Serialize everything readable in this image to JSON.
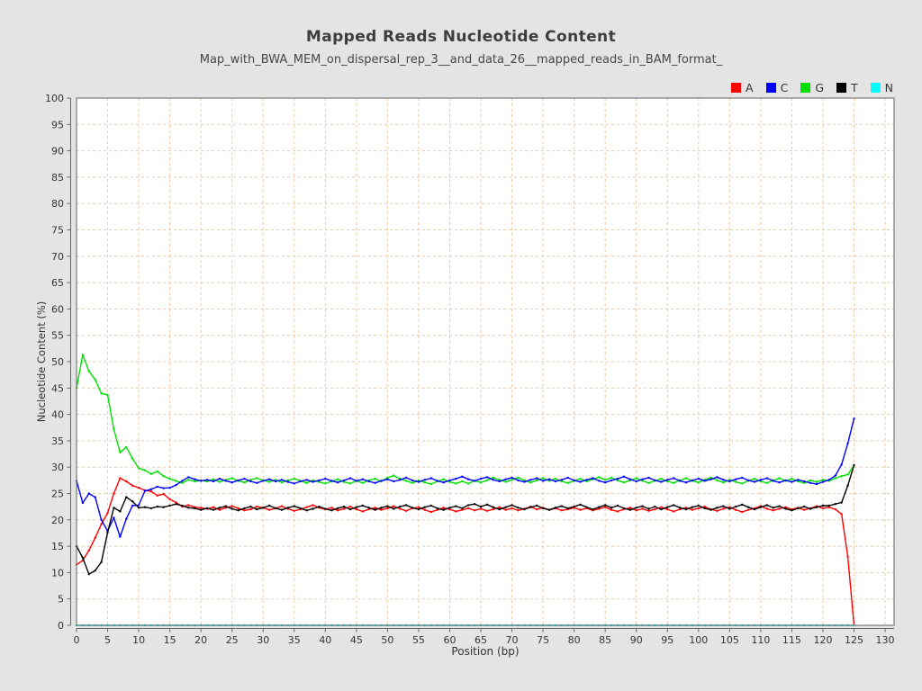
{
  "page": {
    "background": "#e4e4e4"
  },
  "header": {
    "title": "Mapped Reads Nucleotide Content",
    "subtitle": "Map_with_BWA_MEM_on_dispersal_rep_3__and_data_26__mapped_reads_in_BAM_format_"
  },
  "chart_data": {
    "type": "line",
    "title": "Mapped Reads Nucleotide Content",
    "subtitle": "Map_with_BWA_MEM_on_dispersal_rep_3__and_data_26__mapped_reads_in_BAM_format_",
    "xlabel": "Position (bp)",
    "ylabel": "Nucleotide Content (%)",
    "xlim": [
      0,
      130
    ],
    "ylim": [
      0,
      100
    ],
    "xticks": [
      0,
      5,
      10,
      15,
      20,
      25,
      30,
      35,
      40,
      45,
      50,
      55,
      60,
      65,
      70,
      75,
      80,
      85,
      90,
      95,
      100,
      105,
      110,
      115,
      120,
      125,
      130
    ],
    "yticks": [
      0,
      5,
      10,
      15,
      20,
      25,
      30,
      35,
      40,
      45,
      50,
      55,
      60,
      65,
      70,
      75,
      80,
      85,
      90,
      95,
      100
    ],
    "grid": "dashed",
    "grid_color": "#f0c8a0",
    "plot_background": "#ffffff",
    "border_color": "#7a7a7a",
    "axis_color": "#666666",
    "legend_position": "top-right",
    "x_start": 0,
    "x_step": 1,
    "series": [
      {
        "name": "A",
        "color": "#ff0000",
        "values": [
          11.5,
          12.3,
          14.2,
          16.6,
          19.2,
          21.3,
          25.0,
          27.9,
          27.3,
          26.5,
          26.1,
          25.6,
          25.4,
          24.6,
          24.9,
          23.9,
          23.3,
          22.5,
          22.8,
          22.4,
          22.3,
          22.1,
          22.4,
          21.9,
          22.3,
          22.6,
          22.2,
          21.8,
          22.0,
          22.5,
          22.3,
          21.9,
          22.2,
          22.6,
          22.1,
          21.7,
          22.0,
          22.4,
          22.8,
          22.3,
          22.0,
          22.3,
          21.8,
          22.1,
          22.5,
          22.0,
          21.6,
          22.0,
          22.3,
          21.9,
          22.2,
          22.6,
          22.1,
          21.7,
          22.2,
          22.4,
          21.9,
          21.5,
          21.9,
          22.3,
          22.0,
          21.6,
          21.9,
          22.2,
          21.8,
          22.1,
          21.7,
          22.0,
          22.4,
          21.9,
          22.2,
          21.8,
          22.1,
          22.5,
          22.0,
          22.3,
          21.9,
          22.2,
          21.8,
          22.0,
          22.3,
          21.9,
          22.2,
          21.8,
          22.1,
          22.4,
          21.9,
          21.6,
          22.0,
          22.3,
          21.8,
          22.1,
          21.7,
          22.0,
          22.4,
          22.0,
          21.6,
          22.0,
          22.3,
          21.9,
          22.2,
          22.5,
          22.0,
          21.7,
          22.1,
          22.4,
          21.9,
          21.5,
          21.9,
          22.2,
          22.6,
          22.1,
          21.8,
          22.1,
          22.4,
          22.0,
          22.3,
          21.9,
          22.2,
          22.6,
          22.2,
          22.4,
          22.0,
          21.1,
          13.0,
          0.0
        ]
      },
      {
        "name": "C",
        "color": "#0000ff",
        "values": [
          27.4,
          23.2,
          25.0,
          24.3,
          20.0,
          17.9,
          20.4,
          16.8,
          20.2,
          22.7,
          22.8,
          25.5,
          25.8,
          26.3,
          26.0,
          26.1,
          26.6,
          27.4,
          28.1,
          27.7,
          27.4,
          27.6,
          27.3,
          27.8,
          27.4,
          27.1,
          27.5,
          27.8,
          27.3,
          27.0,
          27.4,
          27.7,
          27.3,
          27.6,
          27.2,
          26.9,
          27.3,
          27.6,
          27.2,
          27.5,
          27.8,
          27.4,
          27.1,
          27.5,
          27.9,
          27.4,
          27.7,
          27.3,
          27.0,
          27.4,
          27.7,
          27.3,
          27.6,
          28.0,
          27.5,
          27.2,
          27.6,
          27.9,
          27.4,
          27.1,
          27.5,
          27.8,
          28.2,
          27.7,
          27.4,
          27.8,
          28.1,
          27.6,
          27.3,
          27.7,
          28.0,
          27.5,
          27.2,
          27.6,
          27.9,
          27.4,
          27.7,
          27.3,
          27.6,
          28.0,
          27.5,
          27.2,
          27.6,
          27.9,
          27.4,
          27.1,
          27.5,
          27.8,
          28.2,
          27.7,
          27.3,
          27.7,
          28.0,
          27.5,
          27.2,
          27.6,
          27.9,
          27.4,
          27.1,
          27.5,
          27.8,
          27.4,
          27.7,
          28.1,
          27.6,
          27.3,
          27.7,
          28.0,
          27.5,
          27.2,
          27.6,
          27.9,
          27.4,
          27.1,
          27.5,
          27.2,
          27.6,
          27.3,
          27.0,
          26.8,
          27.2,
          27.6,
          28.4,
          30.5,
          34.5,
          39.2
        ]
      },
      {
        "name": "G",
        "color": "#00e000",
        "values": [
          45.0,
          51.3,
          48.2,
          46.6,
          44.0,
          43.7,
          37.2,
          32.8,
          33.8,
          31.6,
          29.8,
          29.4,
          28.7,
          29.2,
          28.3,
          27.8,
          27.4,
          27.0,
          27.6,
          27.3,
          27.5,
          27.3,
          27.7,
          27.2,
          27.6,
          27.9,
          27.4,
          27.1,
          27.6,
          27.9,
          27.5,
          27.2,
          27.6,
          27.1,
          27.5,
          27.8,
          27.4,
          27.0,
          27.5,
          27.2,
          26.9,
          27.3,
          27.7,
          27.2,
          26.9,
          27.4,
          27.0,
          27.5,
          27.8,
          27.3,
          28.0,
          28.4,
          27.8,
          27.4,
          27.0,
          27.5,
          27.1,
          26.8,
          27.3,
          27.7,
          27.2,
          26.9,
          27.3,
          26.9,
          27.4,
          27.1,
          27.5,
          28.0,
          27.6,
          27.2,
          27.6,
          28.0,
          27.5,
          27.1,
          27.5,
          27.9,
          27.4,
          27.8,
          27.3,
          27.0,
          27.4,
          27.8,
          27.3,
          27.7,
          28.1,
          27.6,
          28.0,
          27.5,
          27.1,
          27.5,
          27.9,
          27.4,
          27.0,
          27.4,
          27.8,
          27.3,
          27.0,
          27.5,
          27.9,
          27.4,
          27.1,
          27.6,
          28.0,
          27.5,
          27.1,
          27.6,
          27.2,
          26.9,
          27.4,
          27.8,
          27.3,
          27.0,
          27.5,
          27.9,
          27.4,
          27.8,
          27.3,
          27.0,
          27.5,
          27.2,
          27.6,
          27.4,
          27.9,
          28.3,
          28.6,
          30.3
        ]
      },
      {
        "name": "T",
        "color": "#000000",
        "values": [
          15.0,
          12.8,
          9.7,
          10.4,
          12.0,
          17.6,
          22.3,
          21.6,
          24.3,
          23.5,
          22.3,
          22.4,
          22.2,
          22.5,
          22.4,
          22.7,
          23.0,
          22.7,
          22.3,
          22.2,
          21.9,
          22.2,
          21.9,
          22.3,
          22.6,
          22.1,
          21.8,
          22.2,
          22.5,
          22.0,
          22.3,
          22.7,
          22.2,
          21.9,
          22.3,
          22.6,
          22.2,
          21.8,
          22.1,
          22.5,
          22.1,
          21.8,
          22.2,
          22.5,
          22.0,
          22.4,
          22.7,
          22.3,
          21.9,
          22.3,
          22.6,
          22.1,
          22.5,
          22.8,
          22.3,
          22.0,
          22.4,
          22.7,
          22.2,
          21.9,
          22.3,
          22.6,
          22.2,
          22.8,
          23.0,
          22.5,
          22.9,
          22.4,
          22.0,
          22.4,
          22.8,
          22.3,
          22.0,
          22.4,
          22.7,
          22.2,
          21.9,
          22.3,
          22.6,
          22.2,
          22.5,
          22.9,
          22.4,
          22.0,
          22.4,
          22.8,
          22.3,
          22.7,
          22.2,
          21.9,
          22.3,
          22.6,
          22.1,
          22.5,
          22.0,
          22.4,
          22.8,
          22.3,
          22.0,
          22.4,
          22.7,
          22.2,
          21.9,
          22.3,
          22.6,
          22.1,
          22.5,
          22.9,
          22.4,
          22.0,
          22.4,
          22.8,
          22.3,
          22.6,
          22.1,
          21.8,
          22.2,
          22.5,
          22.1,
          22.4,
          22.7,
          22.7,
          23.0,
          23.3,
          26.5,
          30.4
        ]
      },
      {
        "name": "N",
        "color": "#00ffff",
        "line_color": "#00c8c8",
        "constant": 0,
        "from": 0,
        "to": 125
      }
    ]
  }
}
